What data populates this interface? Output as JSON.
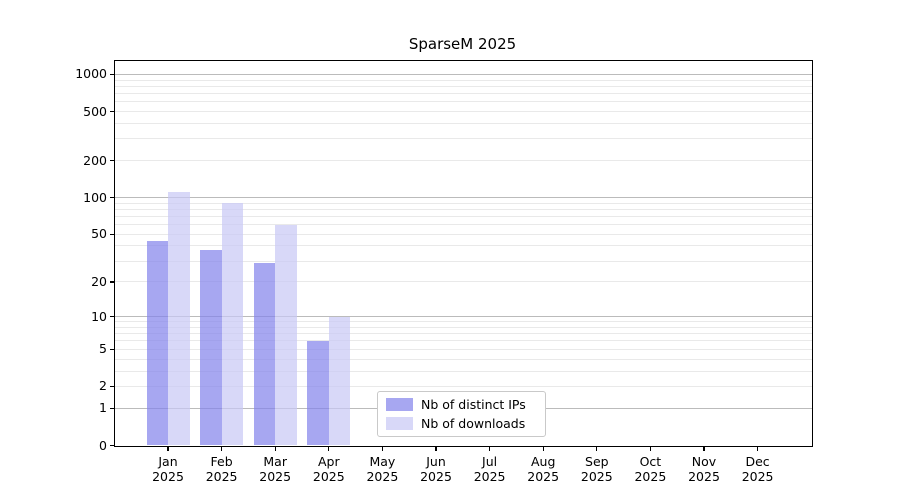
{
  "chart_data": {
    "type": "bar",
    "title": "SparseM 2025",
    "categories": [
      "Jan",
      "Feb",
      "Mar",
      "Apr",
      "May",
      "Jun",
      "Jul",
      "Aug",
      "Sep",
      "Oct",
      "Nov",
      "Dec"
    ],
    "year_label": "2025",
    "series": [
      {
        "name": "Nb of distinct IPs",
        "color": "#8282eb",
        "alpha": 0.7,
        "values": [
          44,
          37,
          29,
          6,
          0,
          0,
          0,
          0,
          0,
          0,
          0,
          0
        ]
      },
      {
        "name": "Nb of downloads",
        "color": "#c8c8f5",
        "alpha": 0.7,
        "values": [
          112,
          90,
          60,
          10,
          0,
          0,
          0,
          0,
          0,
          0,
          0,
          0
        ]
      }
    ],
    "yscale": "log1p",
    "ylim": [
      0,
      1283
    ],
    "yticks": [
      0,
      1,
      2,
      5,
      10,
      20,
      50,
      100,
      200,
      500,
      1000
    ],
    "ytick_labels": [
      "0",
      "1",
      "2",
      "5",
      "10",
      "20",
      "50",
      "100",
      "200",
      "500",
      "1000"
    ],
    "major_gridlines": [
      1,
      10,
      100,
      1000
    ],
    "minor_gridlines": [
      2,
      3,
      4,
      5,
      6,
      7,
      8,
      9,
      20,
      30,
      40,
      50,
      60,
      70,
      80,
      90,
      200,
      300,
      400,
      500,
      600,
      700,
      800,
      900
    ],
    "grid": true,
    "legend_position": "inside-bottom-center"
  },
  "colors": {
    "major_grid": "#bbbbbb",
    "minor_grid": "#e9e9e9",
    "axis": "#000000",
    "background": "#ffffff"
  }
}
